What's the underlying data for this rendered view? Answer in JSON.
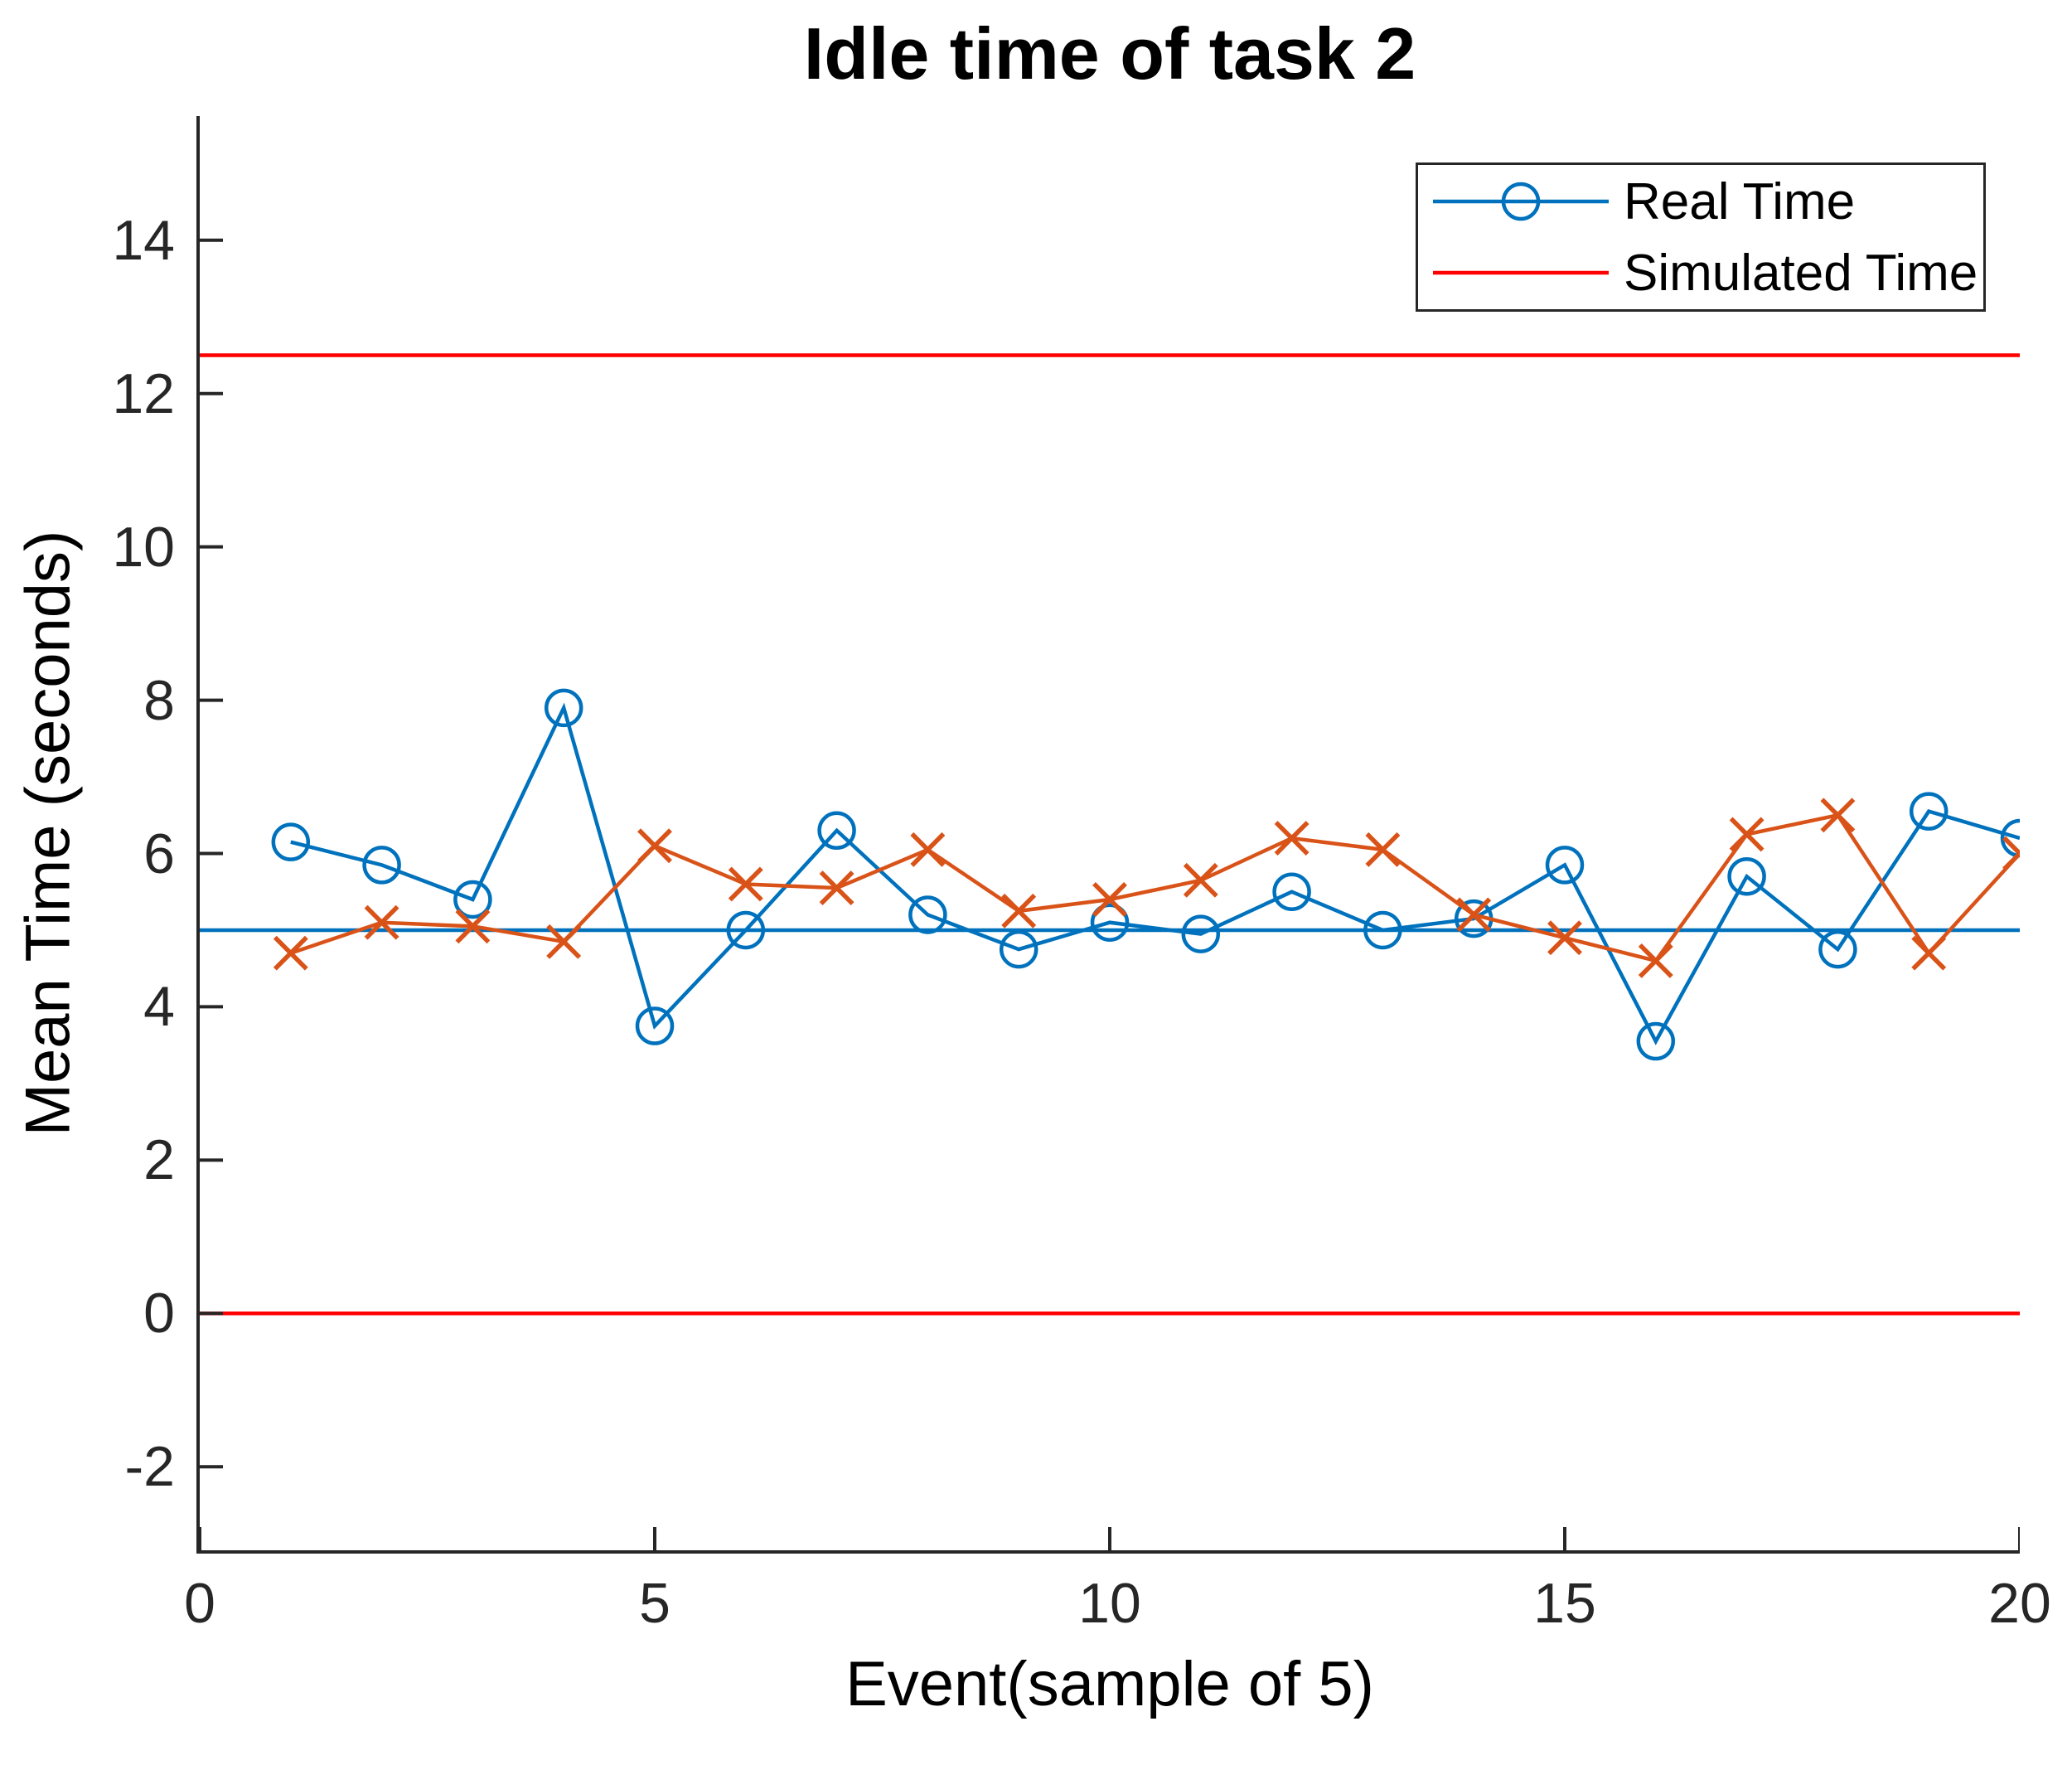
{
  "title": "Idle time of task 2",
  "colors": {
    "real_time_blue": "#0072BD",
    "sample_orange": "#D95319",
    "simulated_red": "#FF0000",
    "axis_gray": "#262626"
  },
  "legend": {
    "items": [
      {
        "label": "Real Time",
        "color": "#0072BD",
        "marker": "circle"
      },
      {
        "label": "Simulated Time",
        "color": "#FF0000",
        "marker": "none"
      }
    ]
  },
  "chart_data": {
    "type": "line",
    "title": "Idle time of task 2",
    "xlabel": "Event(sample of 5)",
    "ylabel": "Mean Time (seconds)",
    "xlim": [
      0,
      20
    ],
    "ylim": [
      -3.09,
      15.62
    ],
    "xticks": [
      0,
      5,
      10,
      15,
      20
    ],
    "yticks": [
      14,
      12,
      10,
      8,
      6,
      4,
      2,
      0,
      -2
    ],
    "grid": false,
    "legend_position": "top-right",
    "x": [
      1,
      2,
      3,
      4,
      5,
      6,
      7,
      8,
      9,
      10,
      11,
      12,
      13,
      14,
      15,
      16,
      17,
      18,
      19,
      20
    ],
    "series": [
      {
        "name": "Real Time",
        "color": "#0072BD",
        "marker": "circle",
        "values": [
          6.15,
          5.85,
          5.4,
          7.9,
          3.75,
          5.0,
          6.3,
          5.2,
          4.75,
          5.1,
          4.95,
          5.5,
          5.0,
          5.15,
          5.85,
          3.55,
          5.7,
          4.75,
          6.55,
          6.2
        ]
      },
      {
        "name": "",
        "color": "#D95319",
        "marker": "x",
        "values": [
          4.7,
          5.1,
          5.05,
          4.85,
          6.1,
          5.6,
          5.55,
          6.05,
          5.25,
          5.4,
          5.65,
          6.2,
          6.05,
          5.2,
          4.9,
          4.6,
          6.25,
          6.5,
          4.7,
          6.0
        ]
      }
    ],
    "reference_lines": [
      {
        "y": 12.5,
        "color": "#FF0000",
        "name": "upper-red-line"
      },
      {
        "y": 0,
        "color": "#FF0000",
        "name": "lower-red-line"
      },
      {
        "y": 5,
        "color": "#0072BD",
        "name": "center-blue-line"
      }
    ]
  }
}
